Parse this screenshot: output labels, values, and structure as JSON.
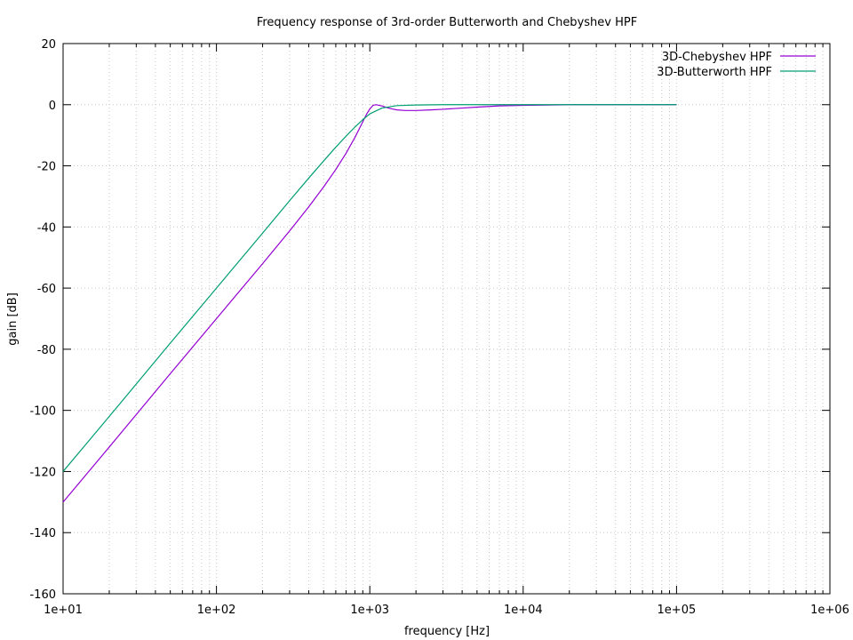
{
  "chart_data": {
    "type": "line",
    "title": "Frequency response of 3rd-order Butterworth and Chebyshev HPF",
    "xlabel": "frequency [Hz]",
    "ylabel": "gain [dB]",
    "xscale": "log",
    "xlim": [
      10,
      1000000
    ],
    "ylim": [
      -160,
      20
    ],
    "x_ticks": [
      "1e+01",
      "1e+02",
      "1e+03",
      "1e+04",
      "1e+05",
      "1e+06"
    ],
    "y_ticks": [
      "20",
      "0",
      "-20",
      "-40",
      "-60",
      "-80",
      "-100",
      "-120",
      "-140",
      "-160"
    ],
    "grid": true,
    "legend_position": "top-right",
    "series": [
      {
        "name": "3D-Chebyshev HPF",
        "color": "#9400d3",
        "x": [
          10,
          20,
          50,
          100,
          200,
          300,
          400,
          500,
          600,
          700,
          800,
          900,
          950,
          1000,
          1050,
          1100,
          1200,
          1300,
          1400,
          1500,
          1700,
          2000,
          2500,
          3000,
          4000,
          5000,
          7000,
          10000,
          20000,
          50000,
          100000
        ],
        "y": [
          -130,
          -112,
          -88,
          -70,
          -52,
          -41.3,
          -33.4,
          -26.9,
          -21.2,
          -15.9,
          -10.7,
          -5.6,
          -3.2,
          -1.4,
          -0.2,
          0,
          -0.4,
          -1.0,
          -1.4,
          -1.7,
          -1.9,
          -1.9,
          -1.7,
          -1.5,
          -1.1,
          -0.8,
          -0.4,
          -0.2,
          0,
          0,
          0
        ]
      },
      {
        "name": "3D-Butterworth HPF",
        "color": "#009e73",
        "x": [
          10,
          20,
          50,
          100,
          200,
          300,
          400,
          500,
          600,
          700,
          800,
          900,
          1000,
          1200,
          1500,
          2000,
          3000,
          5000,
          10000,
          25000,
          100000
        ],
        "y": [
          -120,
          -102,
          -78,
          -60,
          -42,
          -31.4,
          -24.0,
          -18.4,
          -13.9,
          -10.3,
          -7.3,
          -4.9,
          -3.0,
          -1.1,
          -0.3,
          -0.1,
          0,
          0,
          0,
          0,
          0
        ]
      }
    ]
  }
}
